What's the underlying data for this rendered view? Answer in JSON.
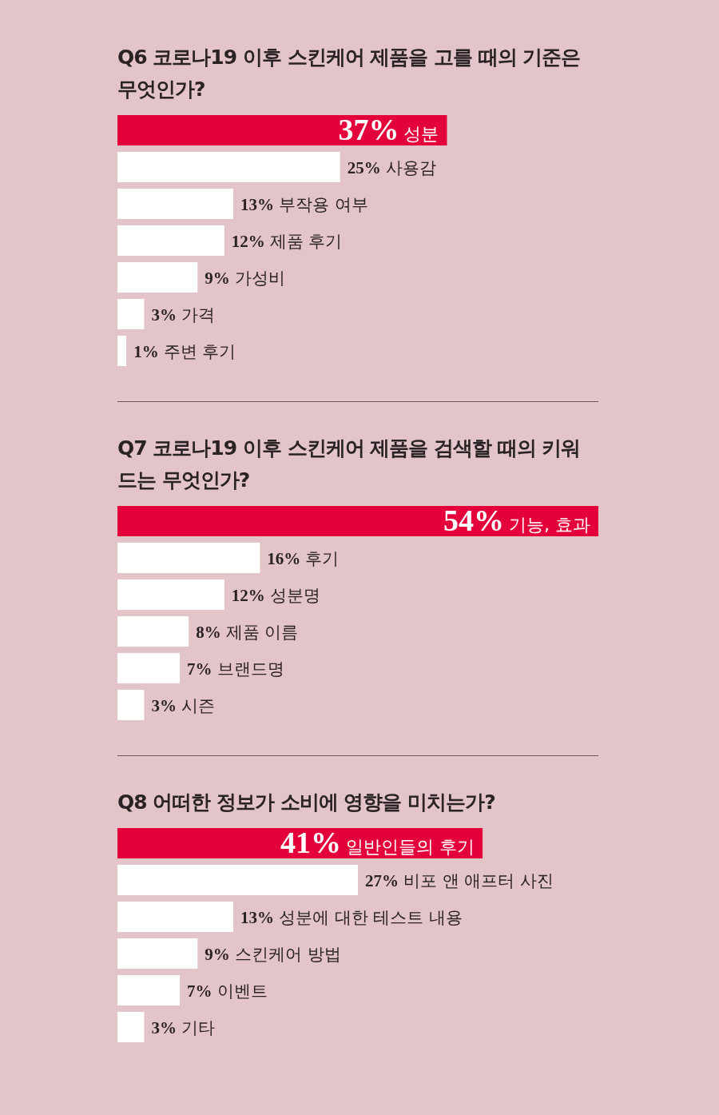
{
  "chart_data": [
    {
      "type": "bar",
      "orientation": "horizontal",
      "title": "Q6 코로나19 이후 스킨케어 제품을 고를 때의 기준은 무엇인가?",
      "categories": [
        "성분",
        "사용감",
        "부작용 여부",
        "제품 후기",
        "가성비",
        "가격",
        "주변 후기"
      ],
      "values": [
        37,
        25,
        13,
        12,
        9,
        3,
        1
      ],
      "colors": [
        "#e4003a",
        "#ffffff",
        "#ffffff",
        "#ffffff",
        "#ffffff",
        "#ffffff",
        "#ffffff"
      ],
      "value_labels": [
        "37%",
        "25%",
        "13%",
        "12%",
        "9%",
        "3%",
        "1%"
      ]
    },
    {
      "type": "bar",
      "orientation": "horizontal",
      "title": "Q7 코로나19 이후 스킨케어 제품을 검색할 때의 키워드는 무엇인가?",
      "categories": [
        "기능, 효과",
        "후기",
        "성분명",
        "제품 이름",
        "브랜드명",
        "시즌"
      ],
      "values": [
        54,
        16,
        12,
        8,
        7,
        3
      ],
      "colors": [
        "#e4003a",
        "#ffffff",
        "#ffffff",
        "#ffffff",
        "#ffffff",
        "#ffffff"
      ],
      "value_labels": [
        "54%",
        "16%",
        "12%",
        "8%",
        "7%",
        "3%"
      ]
    },
    {
      "type": "bar",
      "orientation": "horizontal",
      "title": "Q8 어떠한 정보가 소비에 영향을 미치는가?",
      "categories": [
        "일반인들의 후기",
        "비포 앤 애프터 사진",
        "성분에 대한 테스트 내용",
        "스킨케어 방법",
        "이벤트",
        "기타"
      ],
      "values": [
        41,
        27,
        13,
        9,
        7,
        3
      ],
      "colors": [
        "#e4003a",
        "#ffffff",
        "#ffffff",
        "#ffffff",
        "#ffffff",
        "#ffffff"
      ],
      "value_labels": [
        "41%",
        "27%",
        "13%",
        "9%",
        "7%",
        "3%"
      ]
    }
  ]
}
